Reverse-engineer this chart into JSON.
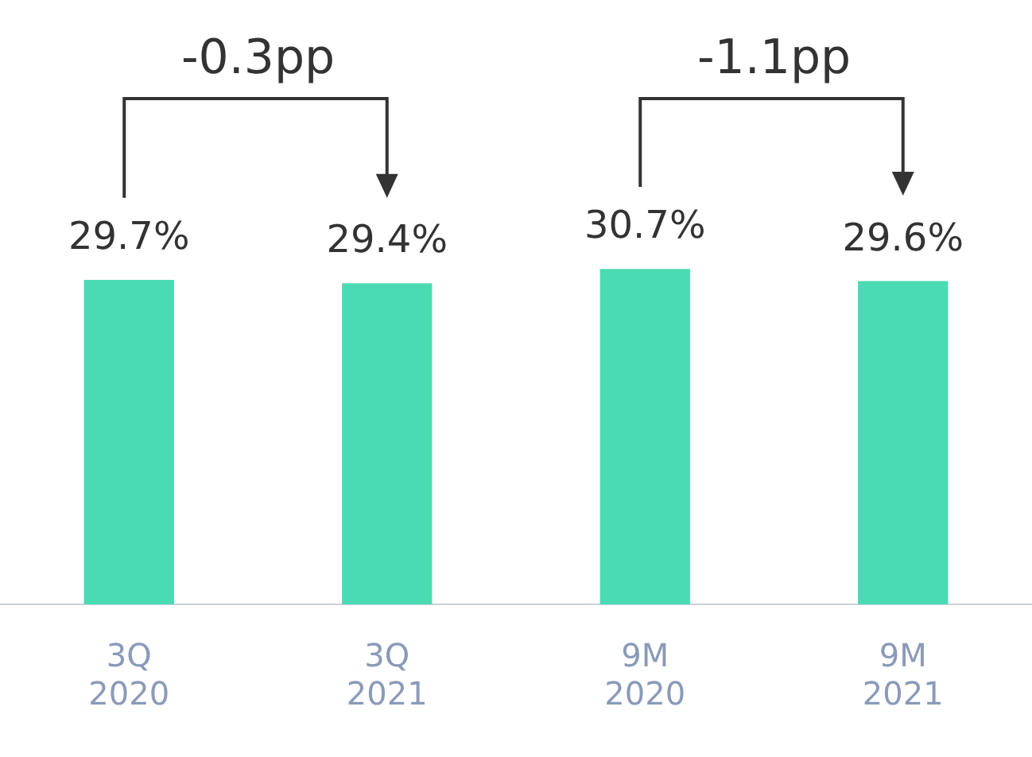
{
  "chart_data": {
    "type": "bar",
    "categories": [
      "3Q 2020",
      "3Q 2021",
      "9M 2020",
      "9M 2021"
    ],
    "values": [
      29.7,
      29.4,
      30.7,
      29.6
    ],
    "value_labels": [
      "29.7%",
      "29.4%",
      "30.7%",
      "29.6%"
    ],
    "color": "#4adbb2",
    "tick_labels": "x",
    "annotations": [
      "-0.3pp",
      "-1.1pp"
    ],
    "grid": false,
    "legend": false
  }
}
